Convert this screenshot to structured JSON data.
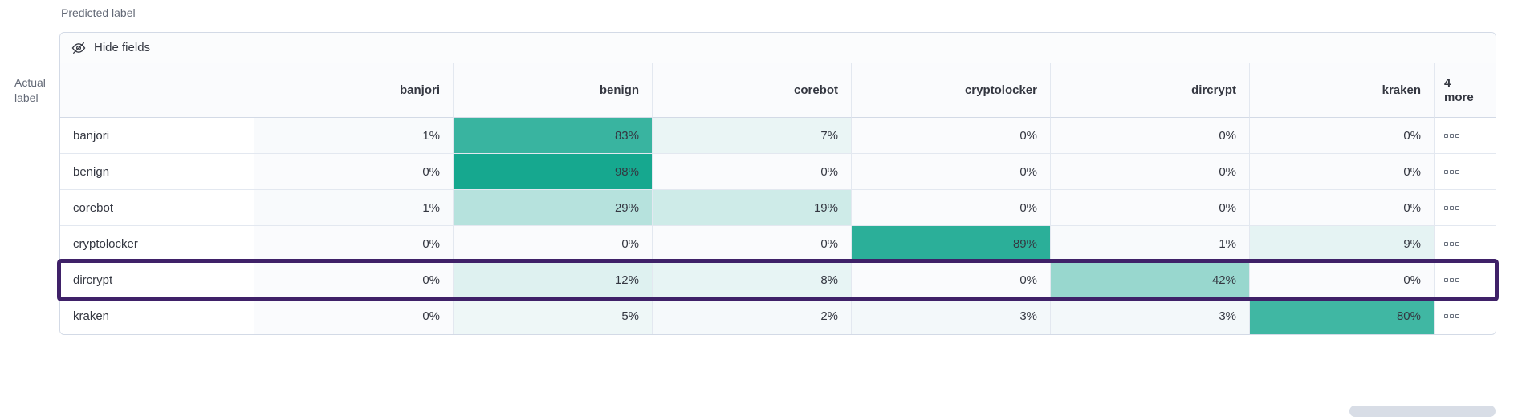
{
  "axis": {
    "predicted": "Predicted label",
    "actual_line1": "Actual",
    "actual_line2": "label"
  },
  "toolbar": {
    "hide_fields": "Hide fields"
  },
  "icons": {
    "toolbar_icon": "eye-slash-icon",
    "row_actions_icon": "boxes-horizontal-icon"
  },
  "chart_data": {
    "type": "heatmap",
    "xlabel": "Predicted label",
    "ylabel": "Actual label",
    "columns": [
      "banjori",
      "benign",
      "corebot",
      "cryptolocker",
      "dircrypt",
      "kraken"
    ],
    "hidden_columns_note": {
      "line1": "4",
      "line2": "more"
    },
    "rows": [
      {
        "label": "banjori",
        "values": [
          1,
          83,
          7,
          0,
          0,
          0
        ],
        "highlighted": false
      },
      {
        "label": "benign",
        "values": [
          0,
          98,
          0,
          0,
          0,
          0
        ],
        "highlighted": false
      },
      {
        "label": "corebot",
        "values": [
          1,
          29,
          19,
          0,
          0,
          0
        ],
        "highlighted": false
      },
      {
        "label": "cryptolocker",
        "values": [
          0,
          0,
          0,
          89,
          1,
          9
        ],
        "highlighted": false
      },
      {
        "label": "dircrypt",
        "values": [
          0,
          12,
          8,
          0,
          42,
          0
        ],
        "highlighted": true
      },
      {
        "label": "kraken",
        "values": [
          0,
          5,
          2,
          3,
          3,
          80
        ],
        "highlighted": false
      }
    ],
    "value_suffix": "%",
    "value_range": [
      0,
      100
    ],
    "colors": {
      "scale_min": "#FAFBFD",
      "scale_max": "#11A68D",
      "highlight_outline": "#3F2168"
    }
  }
}
